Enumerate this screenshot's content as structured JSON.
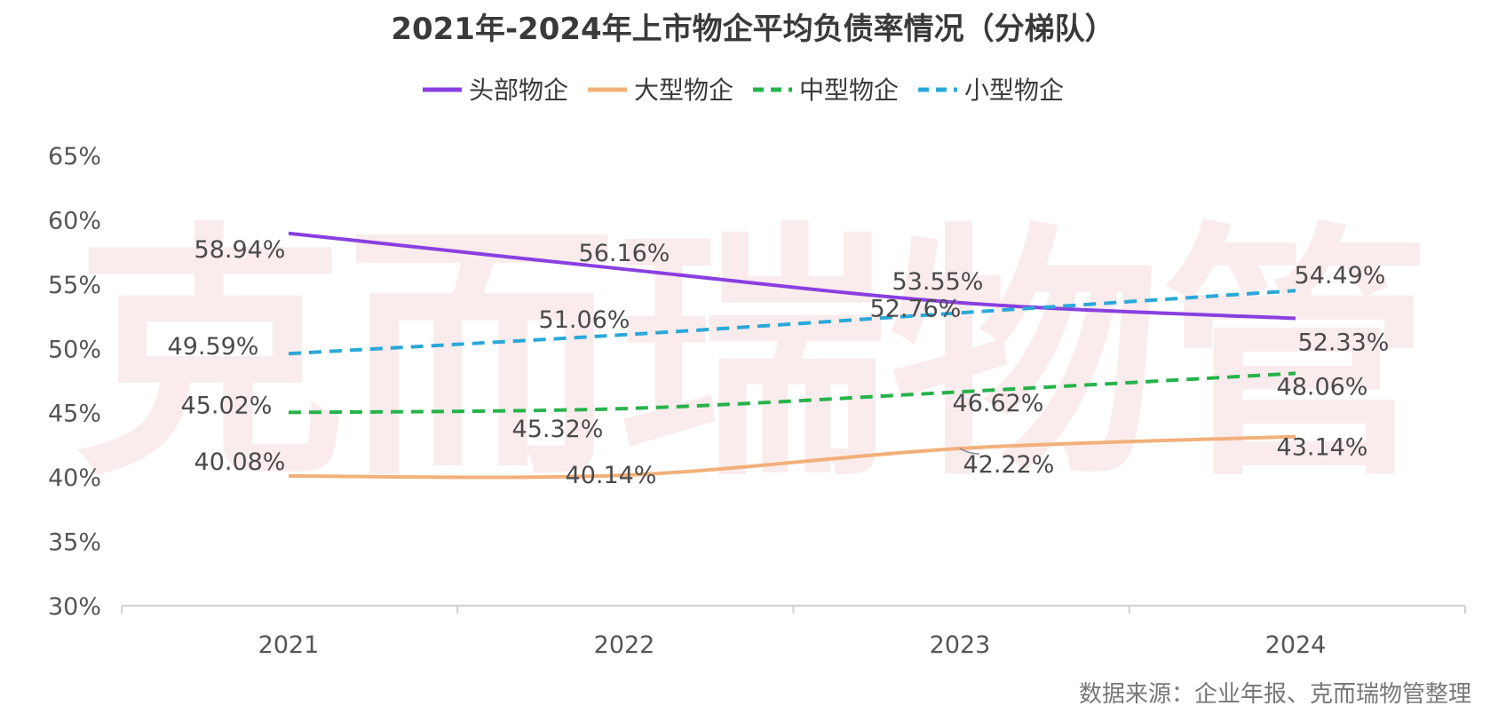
{
  "watermark": "克而瑞物管",
  "source": "数据来源：企业年报、克而瑞物管整理",
  "chart_data": {
    "type": "line",
    "title": "2021年-2024年上市物企平均负债率情况（分梯队）",
    "x": [
      "2021",
      "2022",
      "2023",
      "2024"
    ],
    "ylim": [
      30,
      65
    ],
    "yticks": [
      30,
      35,
      40,
      45,
      50,
      55,
      60,
      65
    ],
    "ytick_labels": [
      "30%",
      "35%",
      "40%",
      "45%",
      "50%",
      "55%",
      "60%",
      "65%"
    ],
    "legend_position": "top-center",
    "grid": false,
    "series": [
      {
        "name": "头部物企",
        "values": [
          58.94,
          56.16,
          53.55,
          52.33
        ],
        "labels": [
          "58.94%",
          "56.16%",
          "53.55%",
          "52.33%"
        ],
        "color": "#8a3fe0",
        "style": "solid"
      },
      {
        "name": "大型物企",
        "values": [
          40.08,
          40.14,
          42.22,
          43.14
        ],
        "labels": [
          "40.08%",
          "40.14%",
          "42.22%",
          "43.14%"
        ],
        "color": "#f2b07a",
        "style": "solid"
      },
      {
        "name": "中型物企",
        "values": [
          45.02,
          45.32,
          46.62,
          48.06
        ],
        "labels": [
          "45.02%",
          "45.32%",
          "46.62%",
          "48.06%"
        ],
        "color": "#26b34a",
        "style": "dashed"
      },
      {
        "name": "小型物企",
        "values": [
          49.59,
          51.06,
          52.76,
          54.49
        ],
        "labels": [
          "49.59%",
          "51.06%",
          "52.76%",
          "54.49%"
        ],
        "color": "#2aa8d8",
        "style": "dashed"
      }
    ]
  }
}
